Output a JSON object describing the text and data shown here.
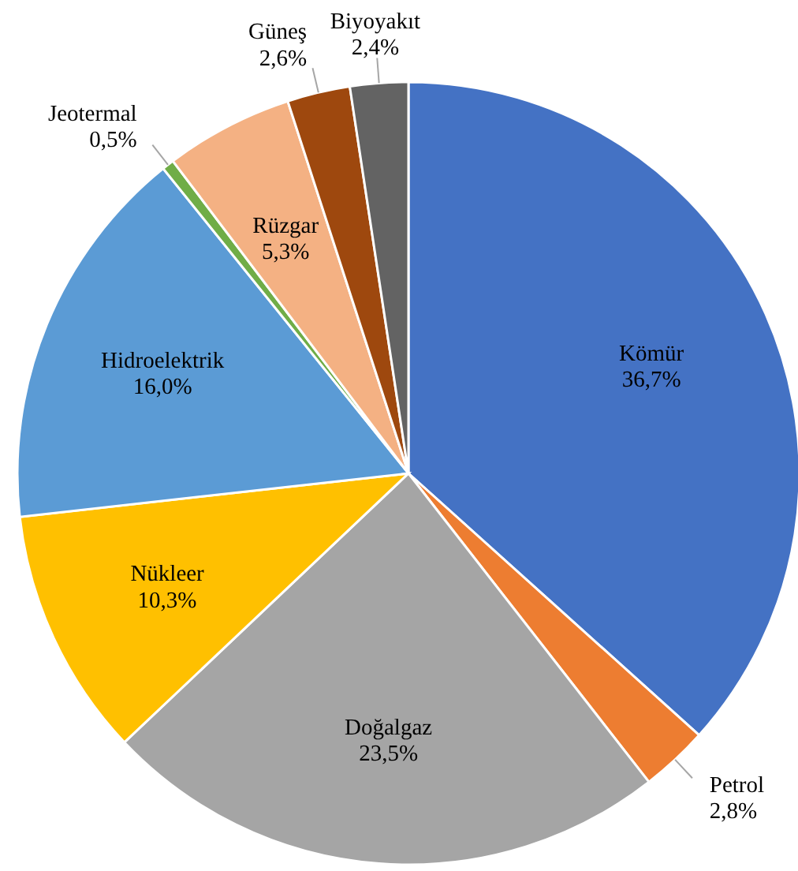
{
  "chart_data": {
    "type": "pie",
    "categories": [
      "Kömür",
      "Petrol",
      "Doğalgaz",
      "Nükleer",
      "Hidroelektrik",
      "Jeotermal",
      "Rüzgar",
      "Güneş",
      "Biyoyakıt"
    ],
    "values": [
      36.7,
      2.8,
      23.5,
      10.3,
      16.0,
      0.5,
      5.3,
      2.6,
      2.4
    ],
    "colors": [
      "#4472c4",
      "#ed7d31",
      "#a5a5a5",
      "#ffc000",
      "#5b9bd5",
      "#70ad47",
      "#f4b183",
      "#9e480e",
      "#636363"
    ],
    "value_labels": [
      "36,7%",
      "2,8%",
      "23,5%",
      "10,3%",
      "16,0%",
      "0,5%",
      "5,3%",
      "2,6%",
      "2,4%"
    ]
  }
}
